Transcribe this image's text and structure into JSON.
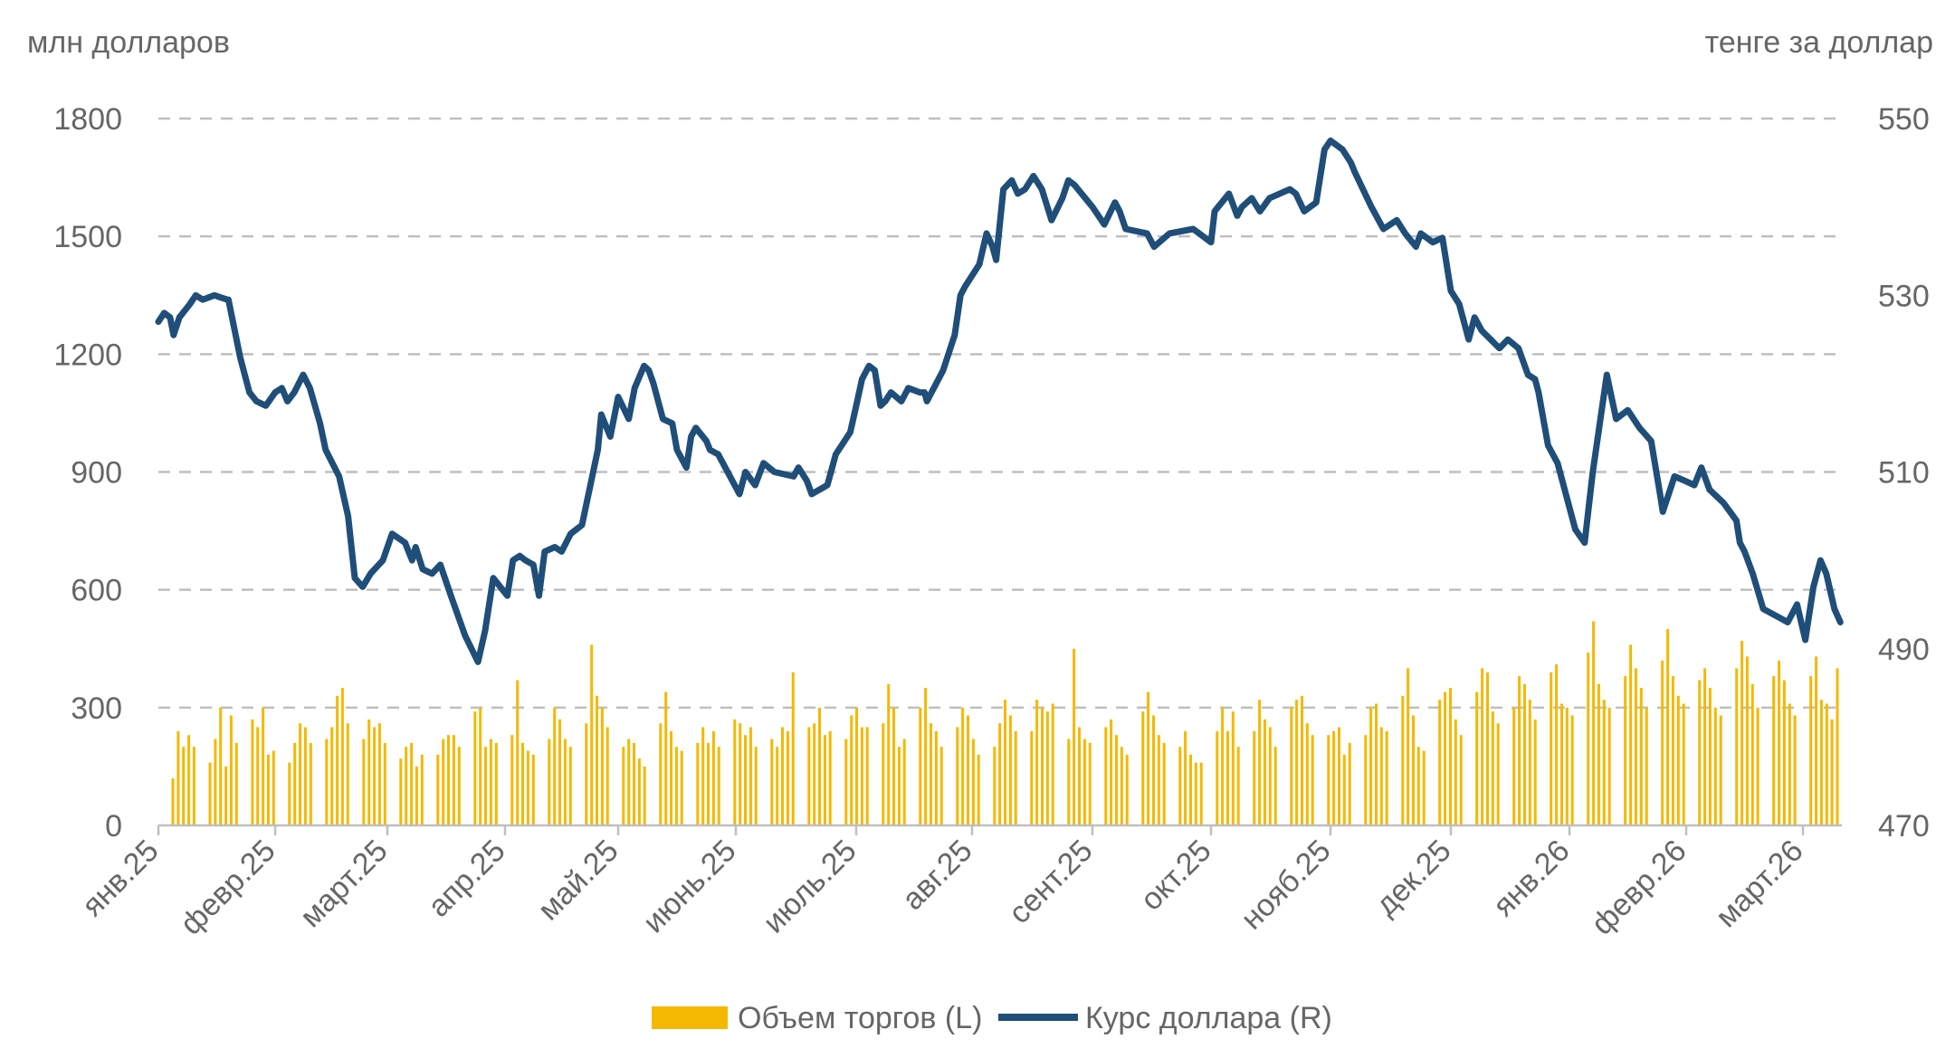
{
  "chart_data": {
    "type": "bar+line",
    "y_left_label": "млн долларов",
    "y_right_label": "тенге за доллар",
    "y_left_ticks": [
      "1800",
      "1500",
      "1200",
      "900",
      "600",
      "300",
      "0"
    ],
    "y_right_ticks": [
      "550",
      "530",
      "510",
      "490",
      "470"
    ],
    "ylim_left": [
      0,
      1800
    ],
    "ylim_right": [
      470,
      550
    ],
    "month_labels": [
      "янв.25",
      "февр.25",
      "март.25",
      "апр.25",
      "май.25",
      "июнь.25",
      "июль.25",
      "авг.25",
      "сент.25",
      "окт.25",
      "нояб.25",
      "дек.25",
      "янв.26",
      "февр.26",
      "март.26"
    ],
    "grid": true,
    "legend_position": "bottom",
    "series": [
      {
        "name": "Объем торгов (L)",
        "kind": "bar",
        "axis": "left",
        "color": "#f5b800",
        "values": [
          120,
          240,
          200,
          230,
          200,
          0,
          0,
          160,
          220,
          300,
          150,
          280,
          210,
          0,
          0,
          270,
          250,
          300,
          180,
          190,
          0,
          0,
          160,
          210,
          260,
          250,
          210,
          0,
          0,
          220,
          250,
          330,
          350,
          260,
          0,
          0,
          220,
          270,
          250,
          260,
          210,
          0,
          0,
          170,
          200,
          210,
          150,
          180,
          0,
          0,
          180,
          220,
          230,
          230,
          200,
          0,
          0,
          290,
          300,
          200,
          220,
          210,
          0,
          0,
          230,
          370,
          210,
          190,
          180,
          0,
          0,
          220,
          300,
          270,
          220,
          200,
          0,
          0,
          260,
          460,
          330,
          300,
          250,
          0,
          0,
          200,
          220,
          210,
          170,
          150,
          0,
          0,
          260,
          340,
          240,
          200,
          190,
          0,
          0,
          210,
          250,
          210,
          240,
          200,
          0,
          0,
          270,
          260,
          230,
          250,
          200,
          0,
          0,
          220,
          200,
          250,
          240,
          390,
          0,
          0,
          250,
          260,
          300,
          230,
          240,
          0,
          0,
          220,
          280,
          300,
          250,
          250,
          0,
          0,
          260,
          360,
          300,
          200,
          220,
          0,
          0,
          300,
          350,
          260,
          240,
          200,
          0,
          0,
          250,
          300,
          280,
          220,
          180,
          0,
          0,
          200,
          260,
          320,
          280,
          240,
          0,
          0,
          240,
          320,
          300,
          290,
          310,
          0,
          0,
          220,
          450,
          250,
          220,
          210,
          0,
          0,
          250,
          270,
          230,
          200,
          180,
          0,
          0,
          290,
          340,
          280,
          230,
          210,
          0,
          0,
          200,
          240,
          180,
          160,
          160,
          0,
          0,
          240,
          300,
          240,
          290,
          200,
          0,
          0,
          240,
          320,
          270,
          250,
          200,
          0,
          0,
          300,
          320,
          330,
          260,
          230,
          0,
          0,
          230,
          240,
          250,
          180,
          210,
          0,
          0,
          230,
          300,
          310,
          250,
          240,
          0,
          0,
          330,
          400,
          280,
          200,
          190,
          0,
          0,
          320,
          340,
          350,
          270,
          230,
          0,
          0,
          340,
          400,
          390,
          290,
          260,
          0,
          0,
          300,
          380,
          360,
          320,
          270,
          0,
          0,
          390,
          410,
          310,
          300,
          280,
          0,
          0,
          440,
          520,
          360,
          320,
          300,
          0,
          0,
          380,
          460,
          400,
          350,
          300,
          0,
          0,
          420,
          500,
          380,
          330,
          310,
          0,
          0,
          370,
          400,
          350,
          300,
          280,
          0,
          0,
          400,
          470,
          430,
          360,
          300,
          0,
          0,
          380,
          420,
          370,
          310,
          280,
          0,
          0,
          380,
          430,
          320,
          310,
          270,
          400
        ]
      },
      {
        "name": "Курс доллара (R)",
        "kind": "line",
        "axis": "right",
        "color": "#1f4e79",
        "x_month_index": [
          0.0,
          0.05,
          0.1,
          0.13,
          0.18,
          0.27,
          0.32,
          0.38,
          0.48,
          0.59,
          0.6,
          0.7,
          0.78,
          0.84,
          0.92,
          1.0,
          1.06,
          1.11,
          1.17,
          1.25,
          1.31,
          1.4,
          1.45,
          1.57,
          1.65,
          1.71,
          1.78,
          1.85,
          1.96,
          2.04,
          2.15,
          2.21,
          2.24,
          2.3,
          2.38,
          2.45,
          2.54,
          2.62,
          2.66,
          2.77,
          2.83,
          2.9,
          3.02,
          3.07,
          3.13,
          3.18,
          3.25,
          3.3,
          3.35,
          3.44,
          3.5,
          3.58,
          3.68,
          3.82,
          3.85,
          3.93,
          4.0,
          4.09,
          4.14,
          4.22,
          4.26,
          4.3,
          4.38,
          4.46,
          4.5,
          4.58,
          4.62,
          4.66,
          4.75,
          4.78,
          4.85,
          5.03,
          5.08,
          5.16,
          5.23,
          5.32,
          5.48,
          5.52,
          5.59,
          5.63,
          5.76,
          5.83,
          5.95,
          6.0,
          6.05,
          6.11,
          6.16,
          6.21,
          6.25,
          6.3,
          6.39,
          6.45,
          6.55,
          6.59,
          6.61,
          6.75,
          6.85,
          6.9,
          6.94,
          7.06,
          7.12,
          7.17,
          7.2,
          7.26,
          7.33,
          7.38,
          7.44,
          7.51,
          7.58,
          7.66,
          7.75,
          7.8,
          7.85,
          8.0,
          8.1,
          8.19,
          8.23,
          8.28,
          8.46,
          8.52,
          8.65,
          8.85,
          8.9,
          9.0,
          9.03,
          9.06,
          9.15,
          9.22,
          9.26,
          9.34,
          9.41,
          9.49,
          9.66,
          9.71,
          9.78,
          9.88,
          9.95,
          10.0,
          10.1,
          10.17,
          10.2,
          10.34,
          10.4,
          10.44,
          10.55,
          10.62,
          10.71,
          10.75,
          10.85,
          10.93,
          11.0,
          11.07,
          11.15,
          11.2,
          11.26,
          11.41,
          11.48,
          11.57,
          11.65,
          11.71,
          11.74,
          11.82,
          11.9,
          12.05,
          12.13,
          12.2,
          12.32,
          12.4,
          12.5,
          12.6,
          12.7,
          12.77,
          12.8,
          12.9,
          12.99,
          13.07,
          13.13,
          13.2,
          13.32,
          13.43,
          13.46,
          13.5,
          13.57,
          13.66,
          13.8,
          13.87,
          13.95,
          14.02,
          14.09,
          14.15,
          14.2,
          14.27,
          14.32
        ],
        "values": [
          527.0,
          528.0,
          527.5,
          525.5,
          527.5,
          529.0,
          530.0,
          529.5,
          530.0,
          529.5,
          529.5,
          523.0,
          519.0,
          518.0,
          517.5,
          519.0,
          519.5,
          518.0,
          519.0,
          521.0,
          519.5,
          515.5,
          512.5,
          509.5,
          505.0,
          498.0,
          497.0,
          498.5,
          500.0,
          503.0,
          502.0,
          500.0,
          501.5,
          499.0,
          498.5,
          499.5,
          496.0,
          493.0,
          491.5,
          488.5,
          492.0,
          498.0,
          496.0,
          500.0,
          500.5,
          500.0,
          499.5,
          496.0,
          501.0,
          501.5,
          501.0,
          503.0,
          504.0,
          512.5,
          516.5,
          514.0,
          518.5,
          516.0,
          519.5,
          522.0,
          521.5,
          520.0,
          516.0,
          515.5,
          512.5,
          510.5,
          514.0,
          515.0,
          513.5,
          512.5,
          512.0,
          507.5,
          510.0,
          508.5,
          511.0,
          510.0,
          509.5,
          510.5,
          509.0,
          507.5,
          508.5,
          512.0,
          514.5,
          517.5,
          520.5,
          522.0,
          521.5,
          517.5,
          518.0,
          519.0,
          518.0,
          519.5,
          519.0,
          519.0,
          518.0,
          521.5,
          525.5,
          530.0,
          531.0,
          533.5,
          537.0,
          535.5,
          534.0,
          542.0,
          543.0,
          541.5,
          542.0,
          543.5,
          542.0,
          538.5,
          541.0,
          543.0,
          542.5,
          540.0,
          538.0,
          540.5,
          539.5,
          537.5,
          537.0,
          535.5,
          537.0,
          537.5,
          537.0,
          536.0,
          539.5,
          540.0,
          541.5,
          539.0,
          540.0,
          541.0,
          539.5,
          541.0,
          542.0,
          541.5,
          539.5,
          540.5,
          546.5,
          547.5,
          546.5,
          545.0,
          544.0,
          540.0,
          538.5,
          537.5,
          538.5,
          537.0,
          535.5,
          537.0,
          536.0,
          536.5,
          530.5,
          529.0,
          525.0,
          527.5,
          526.0,
          524.0,
          525.0,
          524.0,
          521.0,
          520.5,
          519.0,
          513.0,
          511.0,
          503.5,
          502.0,
          510.0,
          521.0,
          516.0,
          517.0,
          515.0,
          513.5,
          508.0,
          505.5,
          509.5,
          509.0,
          508.5,
          510.5,
          508.0,
          506.5,
          504.5,
          502.0,
          501.0,
          498.5,
          494.5,
          493.5,
          493.0,
          495.0,
          491.0,
          497.0,
          500.0,
          498.5,
          494.5,
          493.0,
          492.5,
          491.0,
          489.5
        ]
      }
    ]
  }
}
